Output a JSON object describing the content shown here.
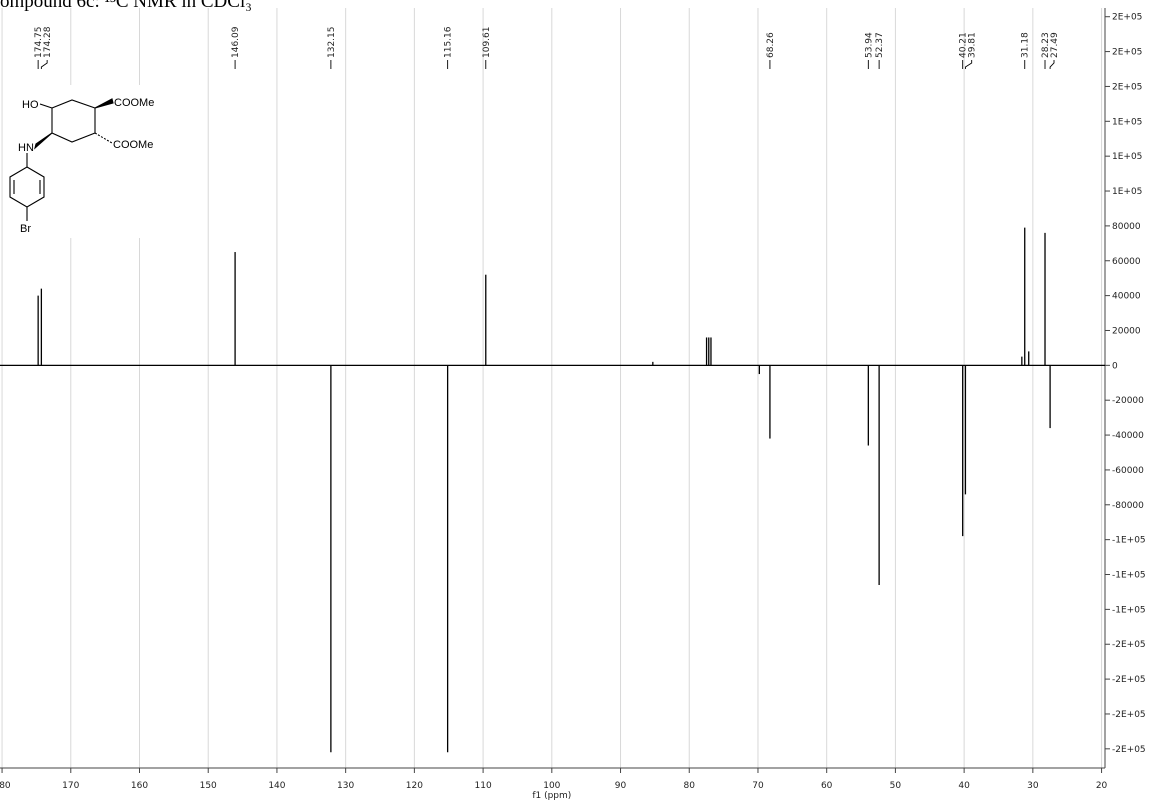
{
  "chart_data": {
    "type": "spectrum",
    "title": "ompound 6c: ¹³C NMR in CDCl₃",
    "x_label": "f1 (ppm)",
    "xlim": [
      180.3,
      19.5
    ],
    "xticks": [
      180,
      170,
      160,
      150,
      140,
      130,
      120,
      110,
      100,
      90,
      80,
      70,
      60,
      50,
      40,
      30,
      20
    ],
    "ylim": [
      -231000,
      205000
    ],
    "yticks": [
      {
        "value": 200000,
        "label": "2E+05"
      },
      {
        "value": 180000,
        "label": "2E+05"
      },
      {
        "value": 160000,
        "label": "2E+05"
      },
      {
        "value": 140000,
        "label": "1E+05"
      },
      {
        "value": 120000,
        "label": "1E+05"
      },
      {
        "value": 100000,
        "label": "1E+05"
      },
      80000,
      60000,
      40000,
      20000,
      0,
      -20000,
      -40000,
      -60000,
      -80000,
      {
        "value": -100000,
        "label": "-1E+05"
      },
      {
        "value": -120000,
        "label": "-1E+05"
      },
      {
        "value": -140000,
        "label": "-1E+05"
      },
      {
        "value": -160000,
        "label": "-2E+05"
      },
      {
        "value": -180000,
        "label": "-2E+05"
      },
      {
        "value": -200000,
        "label": "-2E+05"
      },
      {
        "value": -220000,
        "label": "-2E+05"
      }
    ],
    "grid": true,
    "color": "#000000",
    "peaks": {
      "x": [
        174.75,
        174.28,
        146.09,
        132.15,
        115.16,
        109.61,
        68.26,
        53.94,
        52.37,
        40.21,
        39.81,
        31.18,
        28.23,
        27.49
      ],
      "values": [
        40000,
        44000,
        65000,
        -222000,
        -222000,
        52000,
        -42000,
        -46000,
        -126000,
        -98000,
        -74000,
        79000,
        76000,
        -36000
      ]
    },
    "minor_peaks": {
      "x": [
        85.3,
        77.48,
        77.16,
        76.84,
        69.8,
        31.6,
        30.6
      ],
      "values": [
        2000,
        16000,
        16000,
        16000,
        -5000,
        5000,
        8000
      ]
    }
  },
  "structure": {
    "labels": [
      "HO",
      "COOMe",
      "HN",
      "COOMe",
      "Br"
    ]
  }
}
